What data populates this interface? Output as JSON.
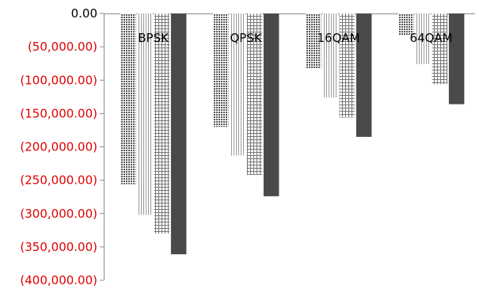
{
  "chart_data": {
    "type": "bar",
    "categories": [
      "BPSK",
      "QPSK",
      "16QAM",
      "64QAM"
    ],
    "series": [
      {
        "values": [
          -256000,
          -170000,
          -82000,
          -32000
        ],
        "pattern": "crosshatch-dense"
      },
      {
        "values": [
          -302000,
          -213000,
          -126000,
          -76000
        ],
        "pattern": "vertical-lines"
      },
      {
        "values": [
          -330000,
          -242000,
          -156000,
          -106000
        ],
        "pattern": "grid"
      },
      {
        "values": [
          -361000,
          -274000,
          -185000,
          -136000
        ],
        "pattern": "solid-dark"
      }
    ],
    "ylim": [
      -400000,
      0
    ],
    "yticks": [
      {
        "value": 0,
        "label": "0.00"
      },
      {
        "value": -50000,
        "label": "(50,000.00)"
      },
      {
        "value": -100000,
        "label": "(100,000.00)"
      },
      {
        "value": -150000,
        "label": "(150,000.00)"
      },
      {
        "value": -200000,
        "label": "(200,000.00)"
      },
      {
        "value": -250000,
        "label": "(250,000.00)"
      },
      {
        "value": -300000,
        "label": "(300,000.00)"
      },
      {
        "value": -350000,
        "label": "(350,000.00)"
      },
      {
        "value": -400000,
        "label": "(400,000.00)"
      }
    ],
    "title": "",
    "xlabel": "",
    "ylabel": "",
    "grid": false,
    "legend": "none",
    "colors": {
      "negative_tick": "#e00000",
      "zero_tick": "#000000",
      "solid_bar": "#4a4a4a",
      "pattern_dark": "#555555",
      "axis": "#8c8c8c"
    }
  }
}
